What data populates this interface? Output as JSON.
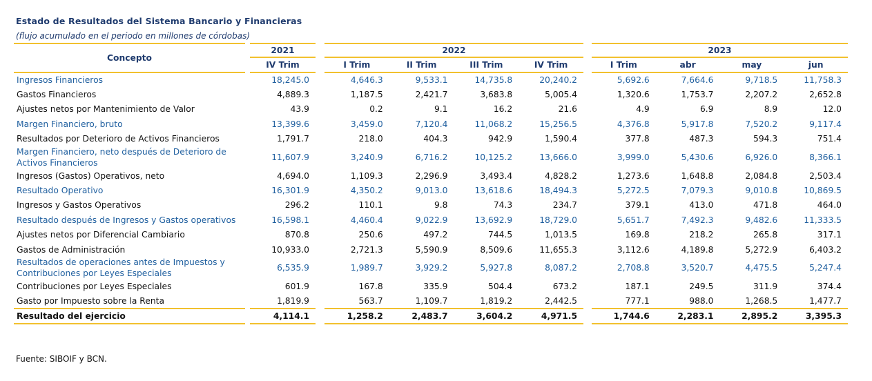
{
  "title": "Estado de Resultados del Sistema Bancario y Financieras",
  "subtitle": "(flujo acumulado en el periodo en millones de córdobas)",
  "table": {
    "header": {
      "concepto": "Concepto",
      "years": [
        {
          "label": "2021",
          "columns": [
            "IV Trim"
          ]
        },
        {
          "label": "2022",
          "columns": [
            "I Trim",
            "II Trim",
            "III Trim",
            "IV Trim"
          ]
        },
        {
          "label": "2023",
          "columns": [
            "I Trim",
            "abr",
            "may",
            "jun"
          ]
        }
      ]
    },
    "rows": [
      {
        "concepto": "Ingresos Financieros",
        "color": "#1f5f9f",
        "values": [
          "18,245.0",
          "4,646.3",
          "9,533.1",
          "14,735.8",
          "20,240.2",
          "5,692.6",
          "7,664.6",
          "9,718.5",
          "11,758.3"
        ]
      },
      {
        "concepto": "Gastos Financieros",
        "color": "#111111",
        "values": [
          "4,889.3",
          "1,187.5",
          "2,421.7",
          "3,683.8",
          "5,005.4",
          "1,320.6",
          "1,753.7",
          "2,207.2",
          "2,652.8"
        ]
      },
      {
        "concepto": "Ajustes netos por Mantenimiento de Valor",
        "color": "#111111",
        "values": [
          "43.9",
          "0.2",
          "9.1",
          "16.2",
          "21.6",
          "4.9",
          "6.9",
          "8.9",
          "12.0"
        ]
      },
      {
        "concepto": "Margen Financiero, bruto",
        "color": "#1f5f9f",
        "values": [
          "13,399.6",
          "3,459.0",
          "7,120.4",
          "11,068.2",
          "15,256.5",
          "4,376.8",
          "5,917.8",
          "7,520.2",
          "9,117.4"
        ]
      },
      {
        "concepto": "Resultados por Deterioro de Activos Financieros",
        "color": "#111111",
        "values": [
          "1,791.7",
          "218.0",
          "404.3",
          "942.9",
          "1,590.4",
          "377.8",
          "487.3",
          "594.3",
          "751.4"
        ]
      },
      {
        "concepto": "Margen Financiero, neto después de Deterioro de Activos Financieros",
        "color": "#1f5f9f",
        "values": [
          "11,607.9",
          "3,240.9",
          "6,716.2",
          "10,125.2",
          "13,666.0",
          "3,999.0",
          "5,430.6",
          "6,926.0",
          "8,366.1"
        ]
      },
      {
        "concepto": "Ingresos (Gastos) Operativos, neto",
        "color": "#111111",
        "values": [
          "4,694.0",
          "1,109.3",
          "2,296.9",
          "3,493.4",
          "4,828.2",
          "1,273.6",
          "1,648.8",
          "2,084.8",
          "2,503.4"
        ]
      },
      {
        "concepto": "Resultado Operativo",
        "color": "#1f5f9f",
        "values": [
          "16,301.9",
          "4,350.2",
          "9,013.0",
          "13,618.6",
          "18,494.3",
          "5,272.5",
          "7,079.3",
          "9,010.8",
          "10,869.5"
        ]
      },
      {
        "concepto": "Ingresos y Gastos Operativos",
        "color": "#111111",
        "values": [
          "296.2",
          "110.1",
          "9.8",
          "74.3",
          "234.7",
          "379.1",
          "413.0",
          "471.8",
          "464.0"
        ]
      },
      {
        "concepto": "Resultado después de Ingresos y Gastos operativos",
        "color": "#1f5f9f",
        "values": [
          "16,598.1",
          "4,460.4",
          "9,022.9",
          "13,692.9",
          "18,729.0",
          "5,651.7",
          "7,492.3",
          "9,482.6",
          "11,333.5"
        ]
      },
      {
        "concepto": "Ajustes netos por Diferencial Cambiario",
        "color": "#111111",
        "values": [
          "870.8",
          "250.6",
          "497.2",
          "744.5",
          "1,013.5",
          "169.8",
          "218.2",
          "265.8",
          "317.1"
        ]
      },
      {
        "concepto": "Gastos de Administración",
        "color": "#111111",
        "values": [
          "10,933.0",
          "2,721.3",
          "5,590.9",
          "8,509.6",
          "11,655.3",
          "3,112.6",
          "4,189.8",
          "5,272.9",
          "6,403.2"
        ]
      },
      {
        "concepto": "Resultados de operaciones antes de Impuestos y Contribuciones por Leyes Especiales",
        "color": "#1f5f9f",
        "values": [
          "6,535.9",
          "1,989.7",
          "3,929.2",
          "5,927.8",
          "8,087.2",
          "2,708.8",
          "3,520.7",
          "4,475.5",
          "5,247.4"
        ]
      },
      {
        "concepto": "Contribuciones por Leyes Especiales",
        "color": "#111111",
        "values": [
          "601.9",
          "167.8",
          "335.9",
          "504.4",
          "673.2",
          "187.1",
          "249.5",
          "311.9",
          "374.4"
        ]
      },
      {
        "concepto": "Gasto por Impuesto sobre la Renta",
        "color": "#111111",
        "values": [
          "1,819.9",
          "563.7",
          "1,109.7",
          "1,819.2",
          "2,442.5",
          "777.1",
          "988.0",
          "1,268.5",
          "1,477.7"
        ]
      },
      {
        "concepto": "Resultado del ejercicio",
        "color": "#111111",
        "values": [
          "4,114.1",
          "1,258.2",
          "2,483.7",
          "3,604.2",
          "4,971.5",
          "1,744.6",
          "2,283.1",
          "2,895.2",
          "3,395.3"
        ]
      }
    ]
  },
  "source": "Fuente: SIBOIF y BCN."
}
